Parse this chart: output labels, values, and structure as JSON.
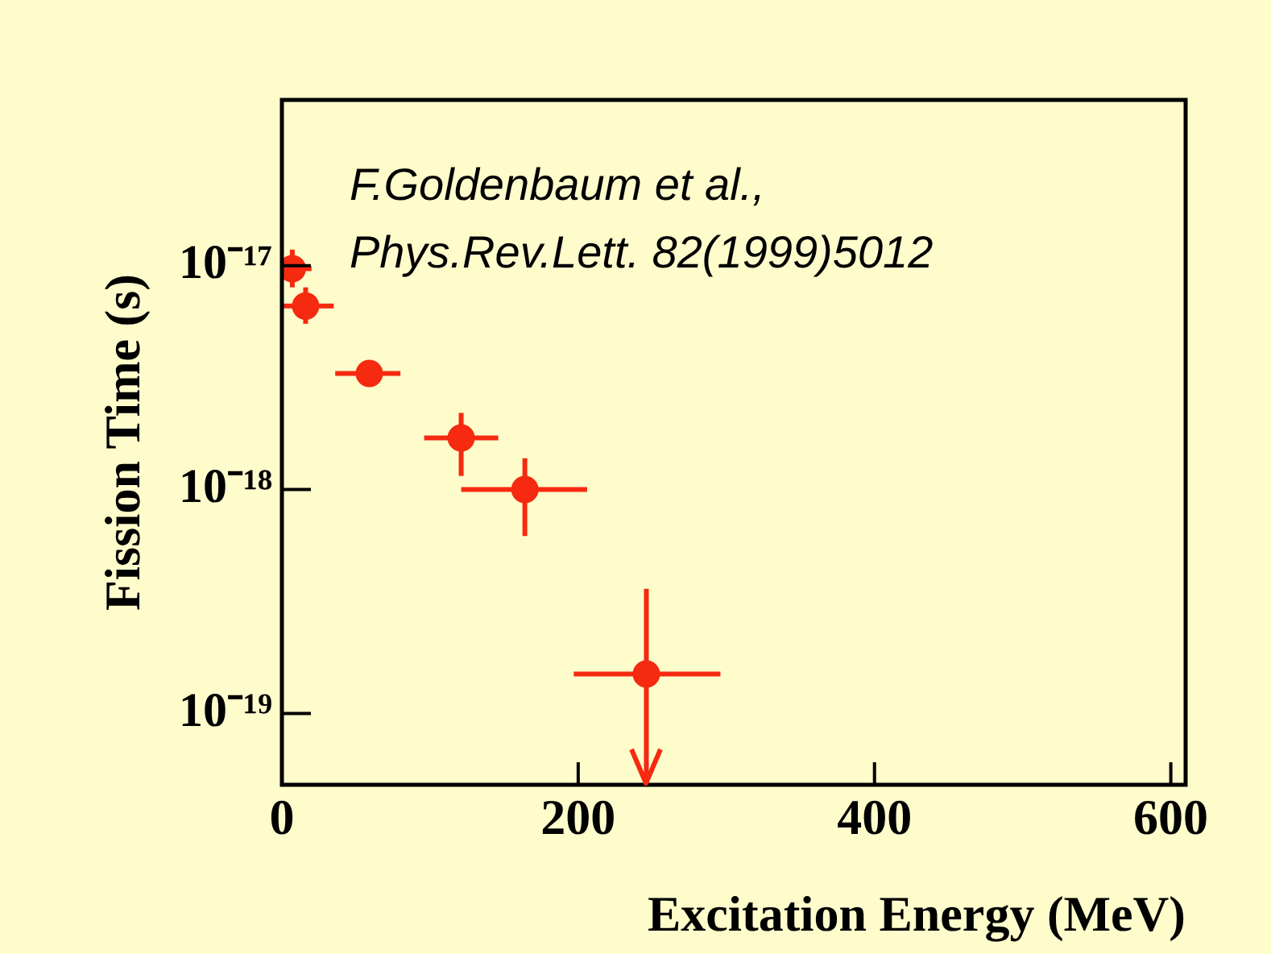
{
  "chart_data": {
    "type": "scatter",
    "xlabel": "Excitation Energy (MeV)",
    "ylabel": "Fission Time (s)",
    "annotations": [
      "F.Goldenbaum et al.,",
      "Phys.Rev.Lett. 82(1999)5012"
    ],
    "x": [
      7,
      16,
      59,
      121,
      164,
      246
    ],
    "series": [
      {
        "color": "#f52a10",
        "values": [
          9.7e-18,
          6.6e-18,
          3.3e-18,
          1.7e-18,
          1e-18,
          1.5e-19
        ],
        "errors": [
          [
            8e-18,
            1.18e-17
          ],
          [
            5.5e-18,
            8e-18
          ],
          null,
          [
            1.15e-18,
            2.2e-18
          ],
          [
            6.2e-19,
            1.38e-18
          ],
          [
            4.8e-20,
            3.6e-19
          ]
        ],
        "xerrors": [
          [
            0,
            20
          ],
          [
            0,
            35
          ],
          [
            36,
            80
          ],
          [
            96,
            146
          ],
          [
            121,
            206
          ],
          [
            197,
            296
          ]
        ]
      }
    ],
    "xlim": [
      0,
      610
    ],
    "xticks": [
      0,
      200,
      400,
      600
    ],
    "ylim": [
      4.8e-20,
      5.5e-17
    ],
    "yticks": [
      {
        "value": 1e-17,
        "label": "10⁻¹⁷"
      },
      {
        "value": 1e-18,
        "label": "10⁻¹⁸"
      },
      {
        "value": 1e-19,
        "label": "10⁻¹⁹"
      }
    ],
    "log": "y",
    "marker": "circle",
    "grid": false,
    "legend": false
  }
}
